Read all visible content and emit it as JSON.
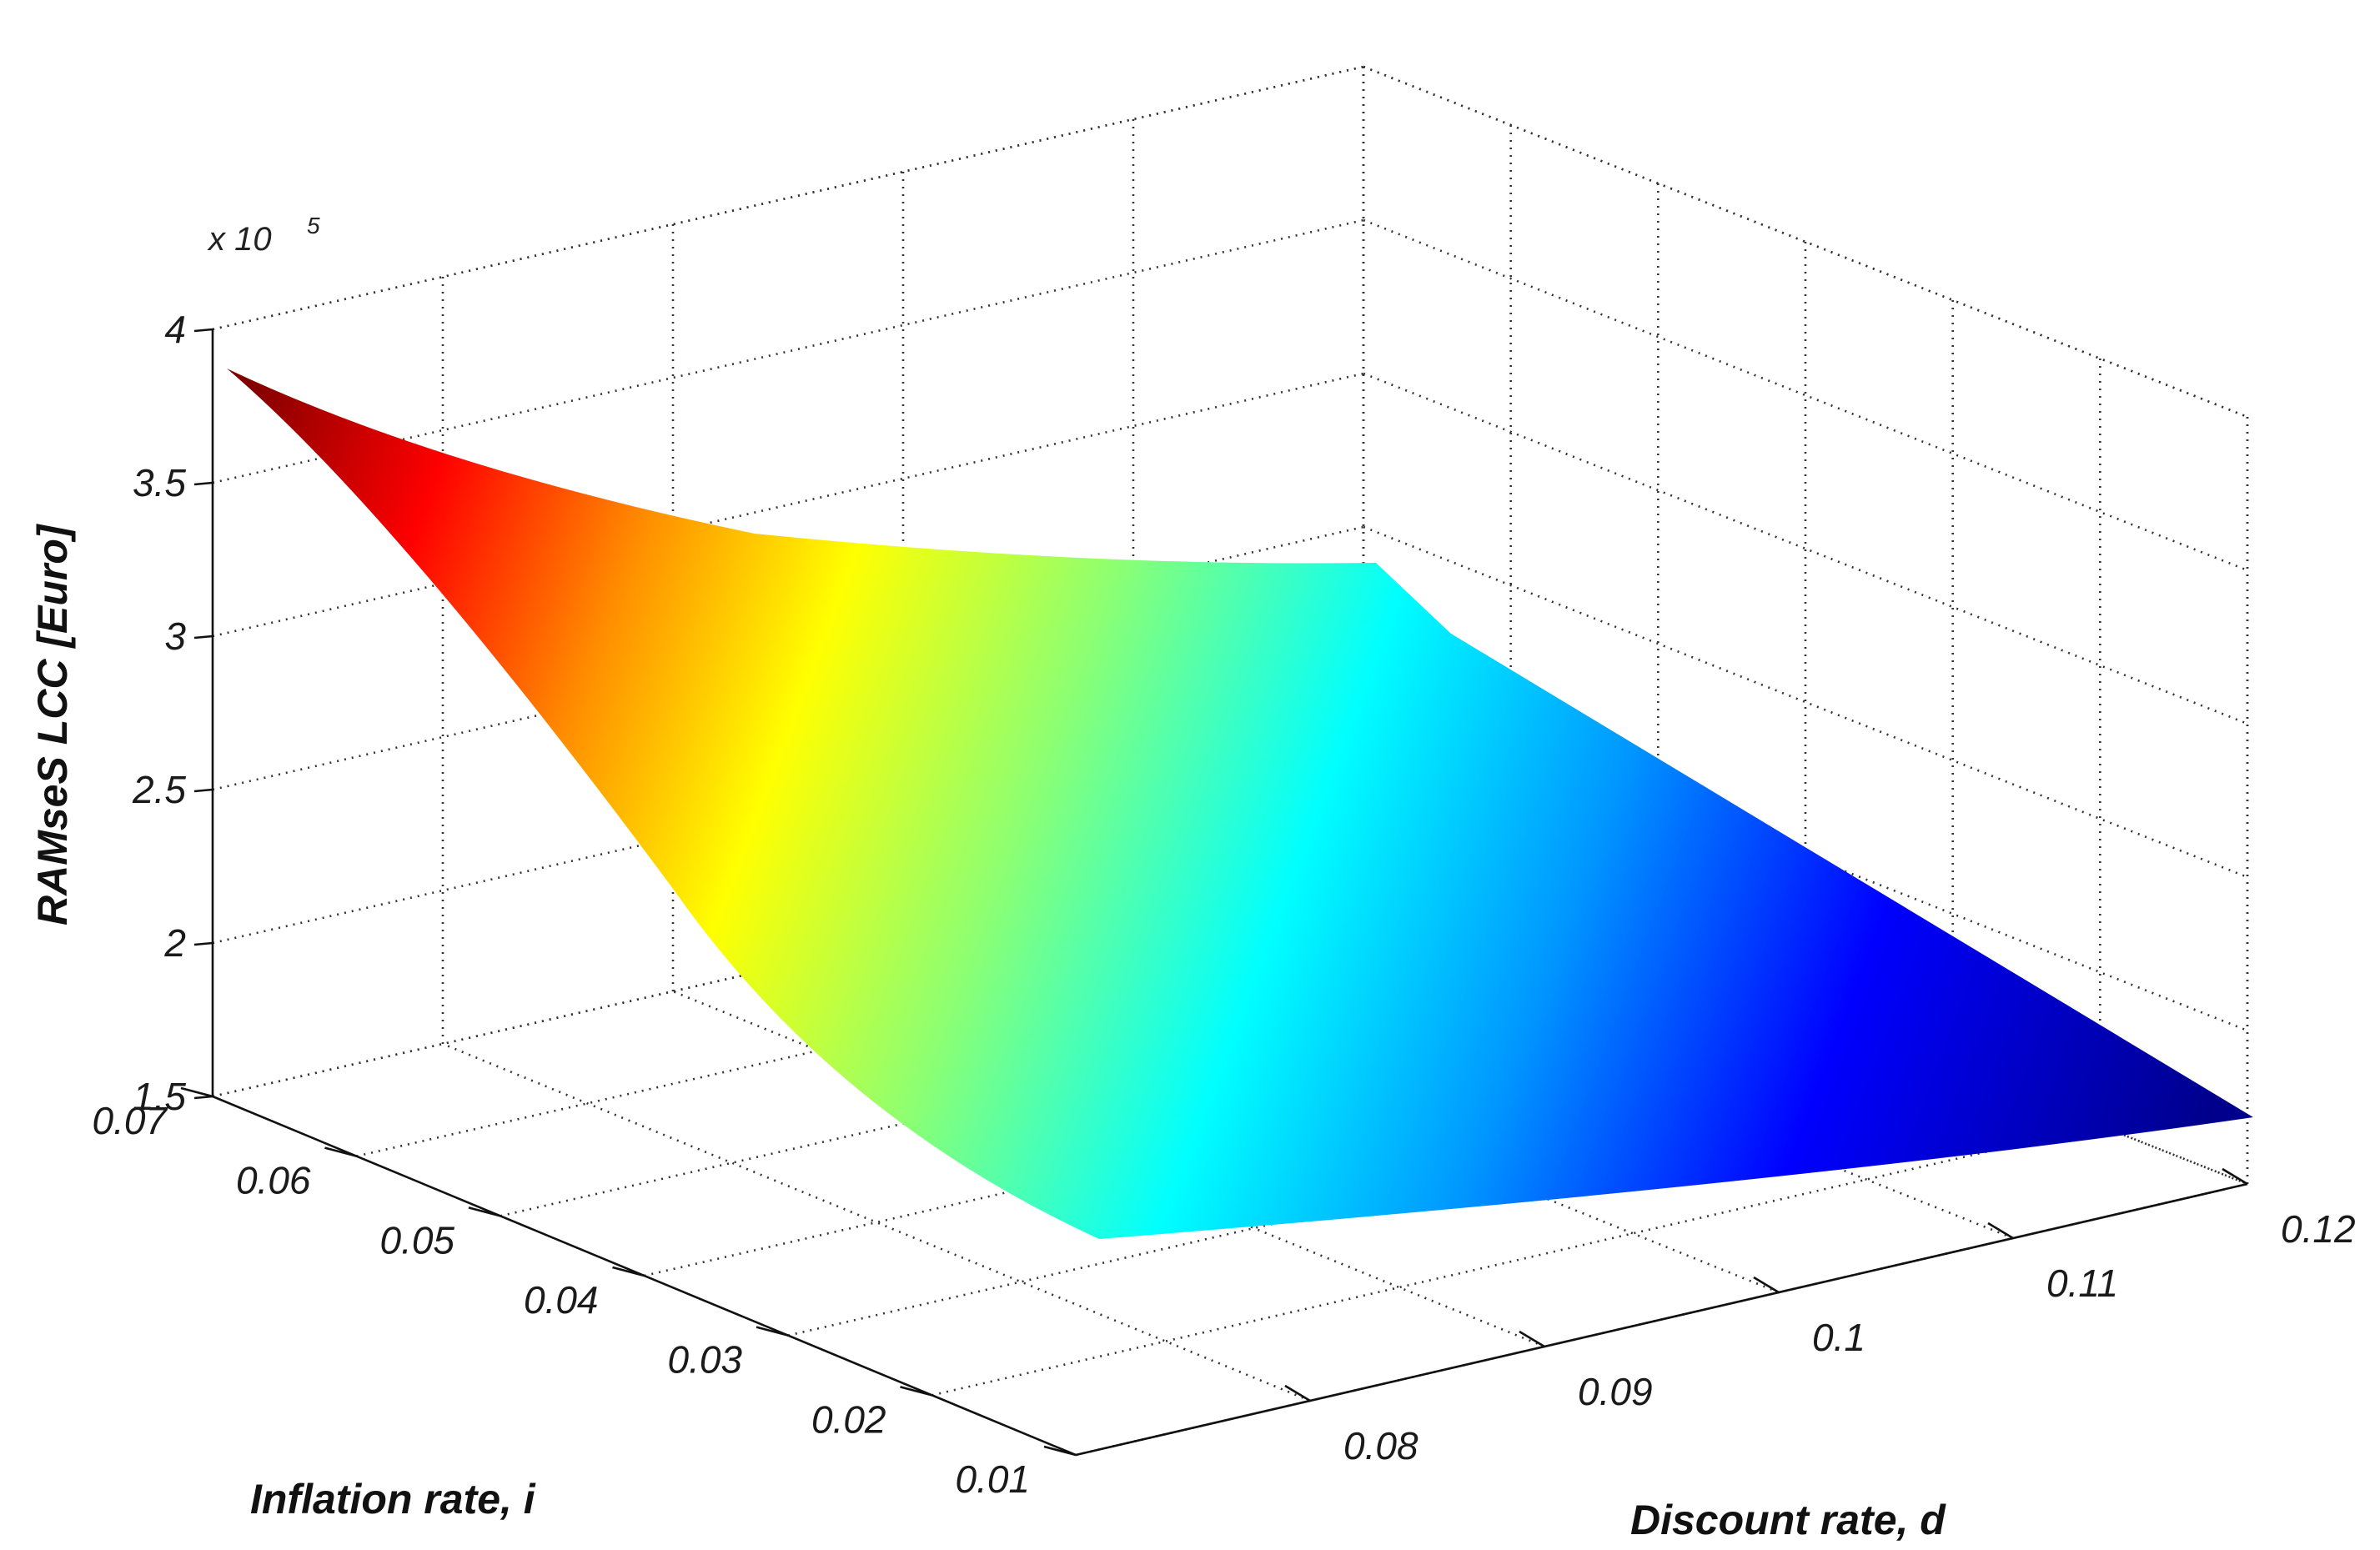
{
  "chart_data": {
    "type": "surface3d",
    "title": "",
    "x_axis": {
      "label": "Discount rate, d",
      "ticks": [
        "0.08",
        "0.09",
        "0.1",
        "0.11",
        "0.12"
      ],
      "range": [
        0.07,
        0.12
      ]
    },
    "y_axis": {
      "label": "Inflation rate, i",
      "ticks": [
        "0.01",
        "0.02",
        "0.03",
        "0.04",
        "0.05",
        "0.06",
        "0.07"
      ],
      "range": [
        0.01,
        0.07
      ]
    },
    "z_axis": {
      "label": "RAMseS LCC [Euro]",
      "multiplier_base": "x 10",
      "multiplier_exp": "5",
      "ticks": [
        "1.5",
        "2",
        "2.5",
        "3",
        "3.5",
        "4"
      ],
      "range": [
        1.5,
        4
      ]
    },
    "colormap": "jet",
    "surface_corners": [
      {
        "d": 0.07,
        "i": 0.07,
        "lcc": 3.85
      },
      {
        "d": 0.12,
        "i": 0.07,
        "lcc": 2.9
      },
      {
        "d": 0.12,
        "i": 0.01,
        "lcc": 1.55
      },
      {
        "d": 0.07,
        "i": 0.01,
        "lcc": 2.1
      }
    ],
    "grid": true
  }
}
